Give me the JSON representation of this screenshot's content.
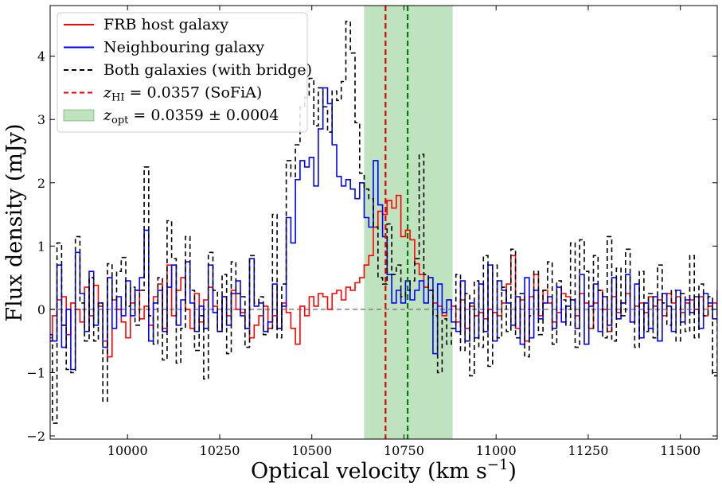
{
  "chart_data": {
    "type": "line",
    "drawstyle": "steps-mid",
    "xlabel": "Optical velocity (km s",
    "xlabel_sup": "−1",
    "xlabel_close": ")",
    "ylabel": "Flux density (mJy)",
    "xlim": [
      9790,
      11600
    ],
    "ylim": [
      -2.05,
      4.8
    ],
    "xticks": [
      10000,
      10250,
      10500,
      10750,
      11000,
      11250,
      11500
    ],
    "yticks": [
      -2,
      -1,
      0,
      1,
      2,
      3,
      4
    ],
    "ytick_labels": [
      "−2",
      "−1",
      "0",
      "1",
      "2",
      "3",
      "4"
    ],
    "grid": false,
    "legend_position": "top-left",
    "zero_line": {
      "y": 0,
      "color": "#808080",
      "style": "dashed"
    },
    "shaded_band": {
      "x0": 10642,
      "x1": 10882,
      "color": "#2ca02c",
      "opacity": 0.3
    },
    "vlines": [
      {
        "x": 10700,
        "color": "#e00000",
        "style": "dashed"
      },
      {
        "x": 10760,
        "color": "#008000",
        "style": "dashed"
      }
    ],
    "legend": [
      {
        "kind": "line",
        "color": "#ff0000",
        "dash": "",
        "text": "FRB host galaxy"
      },
      {
        "kind": "line",
        "color": "#0000ff",
        "dash": "",
        "text": "Neighbouring galaxy"
      },
      {
        "kind": "line",
        "color": "#000000",
        "dash": "6,4",
        "text": "Both galaxies (with bridge)"
      },
      {
        "kind": "line",
        "color": "#e00000",
        "dash": "6,4",
        "math": "z",
        "sub": "HI",
        "text": " = 0.0357 (SoFiA)"
      },
      {
        "kind": "patch",
        "color": "#2ca02c",
        "math": "z",
        "sub": "opt",
        "text": " = 0.0359 ± 0.0004"
      }
    ],
    "x_start": 9790,
    "x_step": 12.44,
    "series": [
      {
        "name": "FRB host galaxy",
        "color": "#ff0000",
        "dash": "",
        "values": [
          -0.45,
          -0.1,
          0.15,
          0.2,
          -0.4,
          0.1,
          0.0,
          -0.2,
          0.35,
          -0.1,
          0.38,
          0.05,
          -0.5,
          -0.75,
          0.15,
          0.0,
          -0.2,
          -0.45,
          0.1,
          0.3,
          -0.15,
          0.05,
          -0.25,
          0.2,
          0.4,
          -0.3,
          0.7,
          -0.1,
          0.3,
          0.5,
          0.0,
          -0.3,
          0.25,
          -0.2,
          0.15,
          0.35,
          0.05,
          -0.35,
          0.2,
          -0.1,
          0.3,
          0.0,
          -0.05,
          -0.3,
          -0.45,
          -0.25,
          -0.1,
          0.05,
          -0.3,
          -0.1,
          -0.3,
          0.1,
          -0.05,
          -0.3,
          -0.55,
          0.05,
          -0.1,
          0.2,
          0.05,
          0.25,
          0.2,
          0.0,
          0.25,
          0.3,
          0.15,
          0.35,
          0.3,
          0.42,
          0.5,
          0.7,
          0.85,
          1.3,
          1.55,
          1.5,
          1.72,
          1.6,
          1.8,
          1.15,
          1.25,
          1.1,
          0.72,
          0.55,
          0.35,
          0.3,
          0.1,
          0.05,
          -0.1,
          0.15,
          0.05,
          -0.2,
          0.15,
          -0.3,
          0.05,
          -0.1,
          -0.05,
          -0.15,
          0.0,
          -0.05,
          -0.1,
          0.1,
          0.4,
          0.85,
          -0.3,
          0.15,
          -0.5,
          0.2,
          0.55,
          -0.1,
          0.3,
          0.1,
          -0.2,
          -0.05,
          0.25,
          0.2,
          0.15,
          -0.1,
          0.25,
          0.1,
          -0.3,
          0.1,
          0.3,
          0.0,
          -0.35,
          0.2,
          -0.05,
          0.1,
          0.25,
          -0.2,
          0.05,
          0.1,
          -0.05,
          0.2,
          0.05,
          0.15,
          -0.1,
          0.25,
          0.1,
          0.2,
          -0.05,
          0.1,
          0.15,
          0.0,
          0.2,
          -0.1,
          0.05,
          0.1,
          0.0,
          0.15,
          -0.05,
          0.2,
          0.1
        ]
      },
      {
        "name": "Neighbouring galaxy",
        "color": "#0000ff",
        "dash": "",
        "values": [
          -0.4,
          -0.5,
          0.7,
          -0.6,
          0.0,
          -0.95,
          0.9,
          0.25,
          -0.35,
          0.6,
          -0.25,
          0.1,
          -0.6,
          0.5,
          -0.3,
          0.2,
          -0.1,
          0.45,
          -0.1,
          0.3,
          0.5,
          1.25,
          -0.5,
          0.1,
          0.3,
          -0.35,
          0.35,
          0.7,
          -0.25,
          0.15,
          0.75,
          0.1,
          -0.35,
          0.05,
          -0.3,
          0.7,
          -0.05,
          -0.35,
          0.2,
          -0.25,
          0.25,
          0.45,
          -0.1,
          -0.3,
          0.8,
          0.05,
          0.1,
          -0.35,
          -0.2,
          0.4,
          -0.3,
          0.05,
          1.45,
          1.05,
          2.05,
          2.35,
          2.25,
          2.4,
          1.95,
          2.85,
          3.5,
          3.25,
          2.6,
          2.1,
          1.95,
          2.05,
          1.9,
          1.75,
          2.0,
          1.45,
          1.3,
          2.35,
          1.65,
          1.15,
          0.55,
          0.1,
          0.3,
          0.1,
          0.45,
          0.15,
          0.3,
          0.45,
          0.1,
          0.5,
          -0.7,
          0.4,
          -0.05,
          0.15,
          -0.2,
          -0.35,
          0.45,
          -0.5,
          0.1,
          -0.45,
          0.4,
          -0.35,
          0.7,
          -0.5,
          0.45,
          0.3,
          0.1,
          -0.25,
          0.2,
          -0.55,
          0.5,
          -0.45,
          0.3,
          -0.15,
          0.1,
          0.2,
          -0.3,
          0.35,
          -0.2,
          0.05,
          0.15,
          -0.3,
          0.55,
          -0.55,
          0.05,
          0.4,
          -0.35,
          0.2,
          -0.25,
          0.5,
          -0.15,
          0.1,
          0.55,
          -0.2,
          0.4,
          -0.45,
          0.1,
          -0.3,
          0.2,
          -0.5,
          0.25,
          0.05,
          -0.35,
          0.3,
          -0.2,
          0.15,
          -0.05,
          0.2,
          -0.3,
          0.25,
          0.1,
          -0.15,
          0.3,
          0.0,
          -0.1,
          0.05
        ]
      },
      {
        "name": "Both galaxies (with bridge)",
        "color": "#000000",
        "dash": "6,4",
        "values": [
          -0.5,
          -1.8,
          1.05,
          -0.25,
          -0.95,
          -1.0,
          1.15,
          0.1,
          -0.5,
          0.5,
          -0.5,
          0.1,
          -1.45,
          0.72,
          0.15,
          0.6,
          0.82,
          0.05,
          0.35,
          -0.25,
          0.3,
          2.25,
          -0.1,
          -0.55,
          0.5,
          -0.8,
          1.4,
          0.8,
          -0.85,
          -0.3,
          1.15,
          0.3,
          -0.65,
          -0.1,
          -1.1,
          0.9,
          0.3,
          -0.35,
          0.55,
          -0.7,
          0.75,
          0.25,
          0.2,
          -0.6,
          0.85,
          0.1,
          0.2,
          -0.4,
          -0.3,
          1.5,
          -0.45,
          0.4,
          2.35,
          2.1,
          2.6,
          3.2,
          3.35,
          3.65,
          2.9,
          3.5,
          3.2,
          2.8,
          3.45,
          3.3,
          3.6,
          4.55,
          4.05,
          2.95,
          2.15,
          1.9,
          1.75,
          1.3,
          0.5,
          0.4,
          1.35,
          0.55,
          0.7,
          0.2,
          0.3,
          0.45,
          0.8,
          2.45,
          0.55,
          0.3,
          -0.1,
          -1.0,
          -0.15,
          -0.55,
          -0.3,
          0.55,
          -0.65,
          0.25,
          -1.05,
          0.45,
          -0.6,
          0.85,
          -0.9,
          0.7,
          -0.45,
          0.35,
          -0.35,
          0.95,
          -0.45,
          0.25,
          -0.75,
          -0.1,
          0.6,
          -0.4,
          0.3,
          0.75,
          -0.55,
          0.45,
          0.15,
          -0.25,
          1.05,
          -0.6,
          1.1,
          0.6,
          -0.3,
          0.85,
          0.3,
          -0.45,
          1.15,
          -0.5,
          0.65,
          -0.1,
          0.95,
          0.2,
          -0.6,
          0.6,
          -0.35,
          0.25,
          -0.45,
          0.7,
          0.1,
          -0.25,
          0.3,
          -0.5,
          0.25,
          -0.35,
          0.85,
          -0.45,
          0.4,
          -0.1,
          0.2,
          -1.05,
          0.1,
          0.45,
          0.7
        ]
      }
    ]
  }
}
